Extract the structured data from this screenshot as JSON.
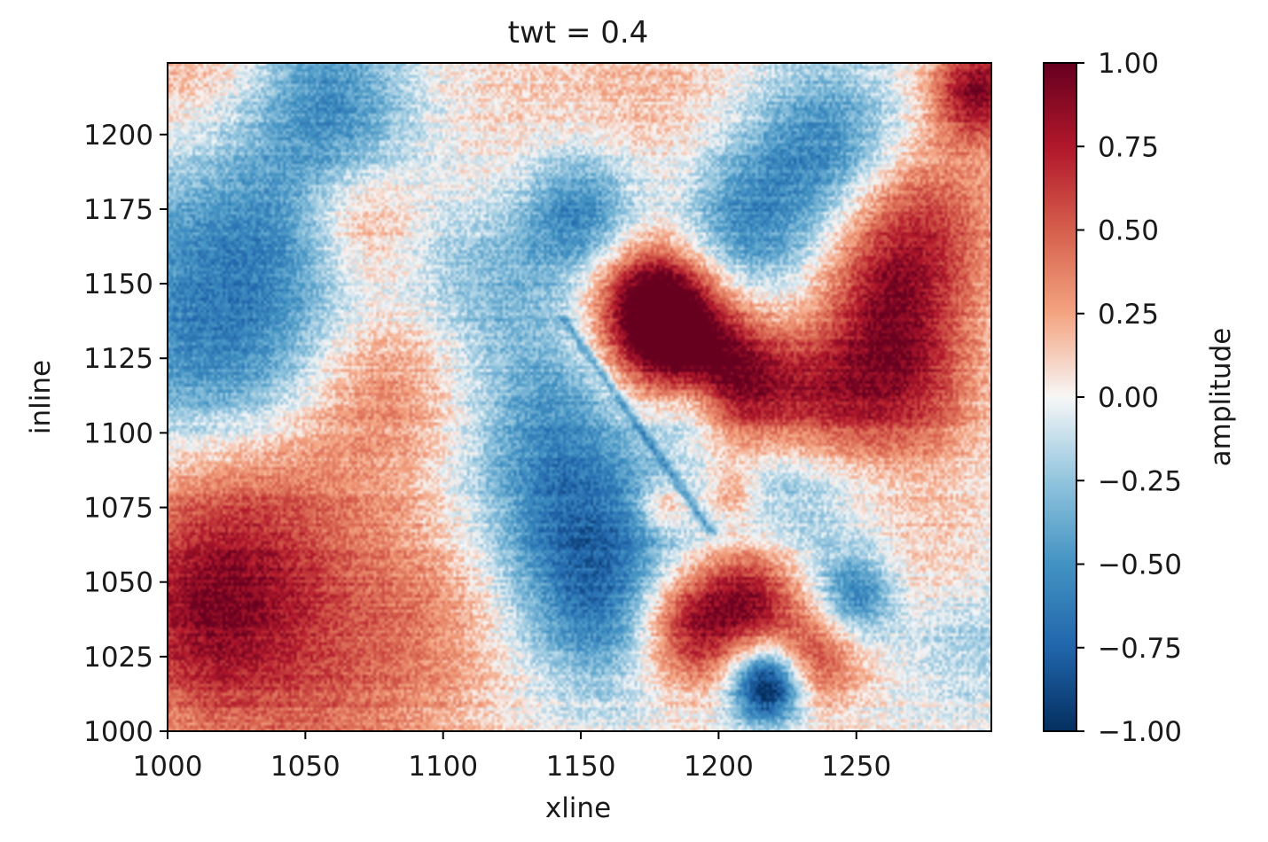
{
  "chart_data": {
    "type": "heatmap",
    "title": "twt = 0.4",
    "xlabel": "xline",
    "ylabel": "inline",
    "x_range": [
      1000,
      1299
    ],
    "y_range": [
      1000,
      1224
    ],
    "x_ticks": [
      1000,
      1050,
      1100,
      1150,
      1200,
      1250
    ],
    "y_ticks": [
      1000,
      1025,
      1050,
      1075,
      1100,
      1125,
      1150,
      1175,
      1200
    ],
    "colorbar": {
      "label": "amplitude",
      "colormap": "RdBu_r",
      "vmin": -1.0,
      "vmax": 1.0,
      "ticks": [
        1.0,
        0.75,
        0.5,
        0.25,
        0.0,
        -0.25,
        -0.5,
        -0.75,
        -1.0
      ],
      "tick_labels": [
        "1.00",
        "0.75",
        "0.50",
        "0.25",
        "0.00",
        "−0.25",
        "−0.50",
        "−0.75",
        "−1.00"
      ]
    },
    "features": [
      {
        "x": 1005,
        "y": 1220,
        "amp": 0.3,
        "s": 25
      },
      {
        "x": 1060,
        "y": 1215,
        "amp": -0.4,
        "s": 20
      },
      {
        "x": 1030,
        "y": 1160,
        "amp": -0.55,
        "s": 40
      },
      {
        "x": 1015,
        "y": 1120,
        "amp": -0.3,
        "s": 25
      },
      {
        "x": 1070,
        "y": 1170,
        "amp": 0.45,
        "s": 15
      },
      {
        "x": 1075,
        "y": 1120,
        "amp": 0.35,
        "s": 20
      },
      {
        "x": 1055,
        "y": 1080,
        "amp": 0.2,
        "s": 30
      },
      {
        "x": 1020,
        "y": 1060,
        "amp": 0.55,
        "s": 30
      },
      {
        "x": 1010,
        "y": 1030,
        "amp": 0.45,
        "s": 25
      },
      {
        "x": 1060,
        "y": 1010,
        "amp": 0.35,
        "s": 30
      },
      {
        "x": 1100,
        "y": 1040,
        "amp": 0.25,
        "s": 25
      },
      {
        "x": 1120,
        "y": 1200,
        "amp": 0.1,
        "s": 30
      },
      {
        "x": 1120,
        "y": 1150,
        "amp": -0.25,
        "s": 20
      },
      {
        "x": 1140,
        "y": 1100,
        "amp": -0.45,
        "s": 25
      },
      {
        "x": 1150,
        "y": 1060,
        "amp": -0.5,
        "s": 25
      },
      {
        "x": 1160,
        "y": 1040,
        "amp": -0.35,
        "s": 20
      },
      {
        "x": 1150,
        "y": 1175,
        "amp": -0.6,
        "s": 15
      },
      {
        "x": 1175,
        "y": 1210,
        "amp": 0.15,
        "s": 25
      },
      {
        "x": 1210,
        "y": 1170,
        "amp": -0.5,
        "s": 18
      },
      {
        "x": 1240,
        "y": 1195,
        "amp": -0.6,
        "s": 20
      },
      {
        "x": 1185,
        "y": 1130,
        "amp": 1.1,
        "s": 16
      },
      {
        "x": 1175,
        "y": 1145,
        "amp": 0.9,
        "s": 14
      },
      {
        "x": 1210,
        "y": 1115,
        "amp": 0.8,
        "s": 15
      },
      {
        "x": 1240,
        "y": 1110,
        "amp": 0.7,
        "s": 16
      },
      {
        "x": 1270,
        "y": 1115,
        "amp": 0.6,
        "s": 18
      },
      {
        "x": 1270,
        "y": 1165,
        "amp": 0.75,
        "s": 22
      },
      {
        "x": 1295,
        "y": 1215,
        "amp": 0.9,
        "s": 12
      },
      {
        "x": 1260,
        "y": 1140,
        "amp": 0.35,
        "s": 15
      },
      {
        "x": 1190,
        "y": 1110,
        "amp": -0.5,
        "s": 10
      },
      {
        "x": 1230,
        "y": 1090,
        "amp": -0.35,
        "s": 20
      },
      {
        "x": 1180,
        "y": 1075,
        "amp": 0.4,
        "s": 6
      },
      {
        "x": 1205,
        "y": 1080,
        "amp": 0.35,
        "s": 6
      },
      {
        "x": 1190,
        "y": 1035,
        "amp": 0.9,
        "s": 14
      },
      {
        "x": 1212,
        "y": 1045,
        "amp": 0.7,
        "s": 12
      },
      {
        "x": 1235,
        "y": 1025,
        "amp": 0.6,
        "s": 12
      },
      {
        "x": 1218,
        "y": 1015,
        "amp": -1.2,
        "s": 9
      },
      {
        "x": 1250,
        "y": 1045,
        "amp": -0.65,
        "s": 10
      },
      {
        "x": 1275,
        "y": 1060,
        "amp": 0.15,
        "s": 18
      },
      {
        "x": 1290,
        "y": 1030,
        "amp": -0.2,
        "s": 15
      },
      {
        "x": 1100,
        "y": 1110,
        "amp": 0.1,
        "s": 20
      }
    ]
  }
}
